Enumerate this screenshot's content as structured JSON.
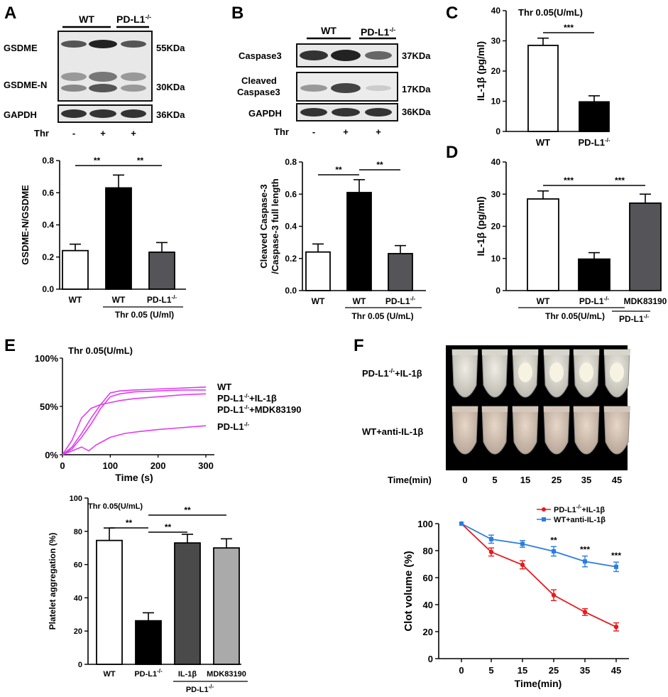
{
  "colors": {
    "black": "#000000",
    "dark_gray": "#555559",
    "darker_gray": "#4a4a4a",
    "light_gray": "#aaaaaa",
    "magenta": "#e03cf0",
    "red": "#e8191c",
    "blue": "#2a7de1",
    "blot_bg": "#e6e6e6",
    "tube_bg": "#000000"
  },
  "A": {
    "label": "A",
    "blot": {
      "header_wt": "WT",
      "header_ko": "PD-L1",
      "header_ko_sup": "-/-",
      "rows": [
        "GSDME",
        "GSDME-N",
        "GAPDH"
      ],
      "sizes": [
        "55KDa",
        "30KDa",
        "36KDa"
      ],
      "thr_label": "Thr",
      "lane_signs": [
        "-",
        "+",
        "+"
      ]
    }
  },
  "B": {
    "label": "B",
    "blot": {
      "header_wt": "WT",
      "header_ko": "PD-L1",
      "header_ko_sup": "-/-",
      "rows": [
        "Caspase3",
        "Cleaved",
        "Caspase3",
        "GAPDH"
      ],
      "sizes": [
        "37KDa",
        "17KDa",
        "36KDa"
      ],
      "thr_label": "Thr",
      "lane_signs": [
        "-",
        "+",
        "+"
      ]
    }
  },
  "C": {
    "label": "C"
  },
  "D": {
    "label": "D"
  },
  "E": {
    "label": "E"
  },
  "F": {
    "label": "F",
    "photo": {
      "row1": "PD-L1",
      "row1_sup": "-/-",
      "row1_suffix": "+IL-1β",
      "row2": "WT+anti-IL-1β",
      "time_label": "Time(min)",
      "times": [
        "0",
        "5",
        "15",
        "25",
        "35",
        "45"
      ]
    }
  },
  "chart_data": [
    {
      "id": "A_bar",
      "type": "bar",
      "ylabel": "GSDME-N/GSDME",
      "ylim": [
        0,
        0.8
      ],
      "yticks": [
        "0.0",
        "0.2",
        "0.4",
        "0.6",
        "0.8"
      ],
      "categories": [
        "WT",
        "WT",
        "PD-L1"
      ],
      "category_sups": [
        "",
        "",
        "-/-"
      ],
      "values": [
        0.24,
        0.63,
        0.23
      ],
      "errors": [
        0.04,
        0.08,
        0.06
      ],
      "group_label": "Thr 0.05 (U/ml)",
      "significance": [
        "**",
        "**"
      ]
    },
    {
      "id": "B_bar",
      "type": "bar",
      "ylabel": "Cleaved Caspase-3",
      "ylabel2": "/Caspase-3 full length",
      "ylim": [
        0,
        0.8
      ],
      "yticks": [
        "0.0",
        "0.2",
        "0.4",
        "0.6",
        "0.8"
      ],
      "categories": [
        "WT",
        "WT",
        "PD-L1"
      ],
      "category_sups": [
        "",
        "",
        "-/-"
      ],
      "values": [
        0.24,
        0.61,
        0.23
      ],
      "errors": [
        0.05,
        0.08,
        0.05
      ],
      "group_label": "Thr 0.05 (U/mL)",
      "significance": [
        "**",
        "**"
      ]
    },
    {
      "id": "C_bar",
      "type": "bar",
      "title": "Thr 0.05(U/mL)",
      "ylabel": "IL-1β (pg/ml)",
      "ylim": [
        0,
        40
      ],
      "yticks": [
        "0",
        "10",
        "20",
        "30",
        "40"
      ],
      "categories": [
        "WT",
        "PD-L1"
      ],
      "category_sups": [
        "",
        "-/-"
      ],
      "values": [
        28.5,
        9.8
      ],
      "errors": [
        2.4,
        2.0
      ],
      "significance": [
        "***"
      ]
    },
    {
      "id": "D_bar",
      "type": "bar",
      "ylabel": "IL-1β (pg/ml)",
      "ylim": [
        0,
        40
      ],
      "yticks": [
        "0",
        "10",
        "20",
        "30",
        "40"
      ],
      "categories": [
        "WT",
        "PD-L1",
        "MDK83190"
      ],
      "category_sups": [
        "",
        "-/-",
        ""
      ],
      "values": [
        28.5,
        9.8,
        27.2
      ],
      "errors": [
        2.5,
        2.0,
        2.8
      ],
      "group_label": "Thr 0.05(U/mL)",
      "sub_label": "PD-L1",
      "sub_label_sup": "-/-",
      "significance": [
        "***",
        "***"
      ]
    },
    {
      "id": "E_line",
      "type": "line",
      "title": "Thr 0.05(U/mL)",
      "xlabel": "Time (s)",
      "xlim": [
        0,
        320
      ],
      "ylim": [
        0,
        100
      ],
      "xticks": [
        "0",
        "100",
        "200",
        "300"
      ],
      "yticks": [
        "0%",
        "50%",
        "100%"
      ],
      "series": [
        {
          "name": "WT",
          "sup": "",
          "suffix": "",
          "x": [
            0,
            20,
            40,
            60,
            80,
            100,
            120,
            150,
            200,
            250,
            300
          ],
          "y": [
            0,
            8,
            22,
            38,
            52,
            64,
            66,
            67,
            68,
            69,
            70
          ]
        },
        {
          "name": "PD-L1",
          "sup": "-/-",
          "suffix": "+IL-1β",
          "x": [
            0,
            20,
            40,
            60,
            80,
            100,
            120,
            150,
            200,
            250,
            300
          ],
          "y": [
            0,
            6,
            18,
            32,
            48,
            60,
            63,
            65,
            66,
            67,
            67
          ]
        },
        {
          "name": "PD-L1",
          "sup": "-/-",
          "suffix": "+MDK83190",
          "x": [
            0,
            20,
            40,
            60,
            80,
            100,
            120,
            150,
            200,
            250,
            300
          ],
          "y": [
            0,
            15,
            38,
            48,
            52,
            54,
            56,
            58,
            60,
            62,
            63
          ]
        },
        {
          "name": "PD-L1",
          "sup": "-/-",
          "suffix": "",
          "x": [
            0,
            20,
            40,
            55,
            70,
            85,
            100,
            130,
            160,
            200,
            250,
            300
          ],
          "y": [
            0,
            4,
            8,
            4,
            10,
            14,
            18,
            22,
            24,
            26,
            28,
            30
          ]
        }
      ]
    },
    {
      "id": "E_bar",
      "type": "bar",
      "title": "Thr 0.05(U/mL)",
      "ylabel": "Platelet aggregation (%)",
      "ylim": [
        0,
        100
      ],
      "yticks": [
        "0",
        "20",
        "40",
        "60",
        "80",
        "100"
      ],
      "categories": [
        "WT",
        "PD-L1",
        "IL-1β",
        "MDK83190"
      ],
      "category_sups": [
        "",
        "-/-",
        "",
        ""
      ],
      "values": [
        74.5,
        26.2,
        73.0,
        70.0
      ],
      "errors": [
        7.5,
        4.8,
        5.2,
        5.5
      ],
      "sub_label": "PD-L1",
      "sub_label_sup": "-/-",
      "significance": [
        "**",
        "**",
        "**"
      ]
    },
    {
      "id": "F_line",
      "type": "line",
      "ylabel": "Clot volume (%)",
      "xlabel": "Time(min)",
      "ylim": [
        0,
        100
      ],
      "yticks": [
        "0",
        "20",
        "40",
        "60",
        "80",
        "100"
      ],
      "categories": [
        "0",
        "5",
        "15",
        "25",
        "35",
        "45"
      ],
      "series": [
        {
          "name": "PD-L1",
          "sup": "-/-",
          "suffix": "+IL-1β",
          "values": [
            100,
            79,
            69.5,
            47,
            34.5,
            23.5
          ],
          "errors": [
            0,
            3,
            3,
            4,
            2.5,
            3
          ]
        },
        {
          "name": "WT+anti-IL-1β",
          "sup": "",
          "suffix": "",
          "values": [
            100,
            88.5,
            85,
            79.5,
            72,
            68
          ],
          "errors": [
            0,
            3,
            2.5,
            3.5,
            4,
            3.5
          ]
        }
      ],
      "annotations": [
        {
          "x": "25",
          "text": "**"
        },
        {
          "x": "35",
          "text": "***"
        },
        {
          "x": "45",
          "text": "***"
        }
      ]
    }
  ]
}
